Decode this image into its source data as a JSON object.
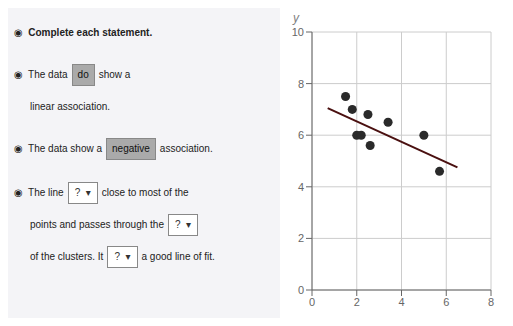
{
  "chart_data": {
    "type": "scatter",
    "ylabel": "y",
    "xlim": [
      0,
      8
    ],
    "ylim": [
      0,
      10
    ],
    "xticks": [
      0,
      2,
      4,
      6,
      8
    ],
    "yticks": [
      0,
      2,
      4,
      6,
      8,
      10
    ],
    "grid": true,
    "series": [
      {
        "type": "scatter",
        "color": "#2a2a2a",
        "x": [
          1.5,
          1.8,
          2.0,
          2.2,
          2.5,
          2.6,
          3.4,
          5.0,
          5.7
        ],
        "values": [
          7.5,
          7.0,
          6.0,
          6.0,
          6.8,
          5.6,
          6.5,
          6.0,
          4.6
        ]
      },
      {
        "type": "line",
        "color": "#4a1010",
        "x": [
          0.7,
          6.5
        ],
        "values": [
          7.05,
          4.75
        ]
      }
    ],
    "annotations": [
      "◉  Complete each statement.",
      "◉  The data",
      "show a",
      "linear association.",
      "◉  The data show a",
      "association.",
      "◉  The line",
      "close to most of the",
      "points and passes through the",
      "of the clusters. It",
      "a good line of fit.",
      "do",
      "negative",
      "?  ▾",
      "?  ▾",
      "?  ▾"
    ]
  }
}
